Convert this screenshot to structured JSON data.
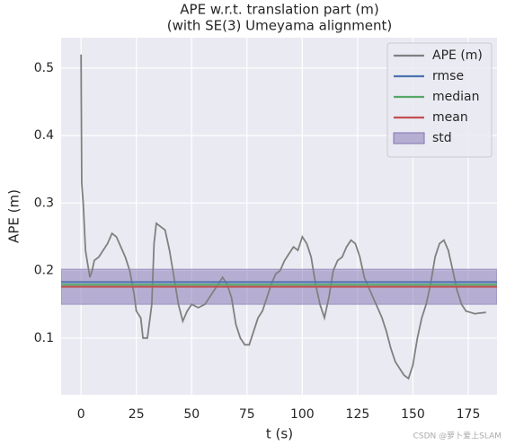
{
  "chart_data": {
    "type": "line",
    "title": "APE w.r.t. translation part (m)",
    "subtitle": "(with SE(3) Umeyama alignment)",
    "xlabel": "t (s)",
    "ylabel": "APE (m)",
    "x": [
      0,
      0.3,
      1,
      2,
      3,
      4,
      5,
      6,
      8,
      10,
      12,
      14,
      16,
      18,
      20,
      22,
      24,
      25,
      27,
      28,
      30,
      32,
      33,
      34,
      36,
      38,
      40,
      42,
      44,
      46,
      48,
      50,
      53,
      56,
      58,
      60,
      62,
      64,
      66,
      68,
      70,
      72,
      74,
      76,
      78,
      80,
      82,
      84,
      86,
      88,
      90,
      92,
      94,
      96,
      98,
      100,
      102,
      104,
      106,
      108,
      110,
      112,
      114,
      116,
      118,
      120,
      122,
      124,
      126,
      128,
      130,
      132,
      134,
      136,
      138,
      140,
      142,
      144,
      146,
      148,
      150,
      152,
      154,
      156,
      158,
      160,
      162,
      164,
      166,
      168,
      170,
      172,
      174,
      176,
      178,
      180,
      183
    ],
    "series": [
      {
        "name": "APE (m)",
        "color": "#808080",
        "values": [
          0.52,
          0.33,
          0.3,
          0.23,
          0.21,
          0.19,
          0.2,
          0.215,
          0.22,
          0.23,
          0.24,
          0.255,
          0.25,
          0.235,
          0.22,
          0.2,
          0.165,
          0.14,
          0.13,
          0.1,
          0.1,
          0.15,
          0.24,
          0.27,
          0.265,
          0.26,
          0.23,
          0.19,
          0.15,
          0.125,
          0.14,
          0.15,
          0.145,
          0.15,
          0.16,
          0.17,
          0.18,
          0.19,
          0.18,
          0.16,
          0.12,
          0.1,
          0.09,
          0.09,
          0.11,
          0.13,
          0.14,
          0.16,
          0.18,
          0.195,
          0.2,
          0.215,
          0.225,
          0.235,
          0.23,
          0.25,
          0.24,
          0.22,
          0.18,
          0.15,
          0.13,
          0.16,
          0.2,
          0.215,
          0.22,
          0.235,
          0.245,
          0.24,
          0.22,
          0.19,
          0.175,
          0.16,
          0.145,
          0.13,
          0.11,
          0.085,
          0.065,
          0.055,
          0.045,
          0.04,
          0.06,
          0.1,
          0.13,
          0.15,
          0.18,
          0.22,
          0.24,
          0.245,
          0.23,
          0.2,
          0.17,
          0.15,
          0.14,
          0.138,
          0.136,
          0.137,
          0.138
        ]
      }
    ],
    "hlines": [
      {
        "name": "rmse",
        "color": "#4c72b0",
        "value": 0.183
      },
      {
        "name": "median",
        "color": "#55a868",
        "value": 0.179
      },
      {
        "name": "mean",
        "color": "#c44e52",
        "value": 0.176
      }
    ],
    "band": {
      "name": "std",
      "color": "#8172b2",
      "value": 0.026
    },
    "xlim": [
      -9,
      188
    ],
    "ylim": [
      0.016,
      0.545
    ],
    "xticks": [
      0,
      25,
      50,
      75,
      100,
      125,
      150,
      175
    ],
    "yticks": [
      0.1,
      0.2,
      0.3,
      0.4,
      0.5
    ],
    "grid": true,
    "legend": "upper right",
    "watermark": "CSDN @萝卜爱上SLAM"
  }
}
